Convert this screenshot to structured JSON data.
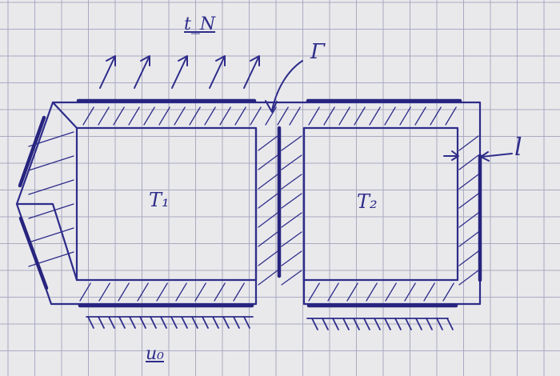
{
  "labels": {
    "traction": "t_N",
    "interface": "Γ",
    "thickness": "l",
    "region1": "T₁",
    "region2": "T₂",
    "displacement": "u₀"
  },
  "colors": {
    "paper": "#e9e9ec",
    "grid": "#a9a9c0",
    "ink": "#2e2c8a",
    "ink_heavy": "#27247f"
  }
}
